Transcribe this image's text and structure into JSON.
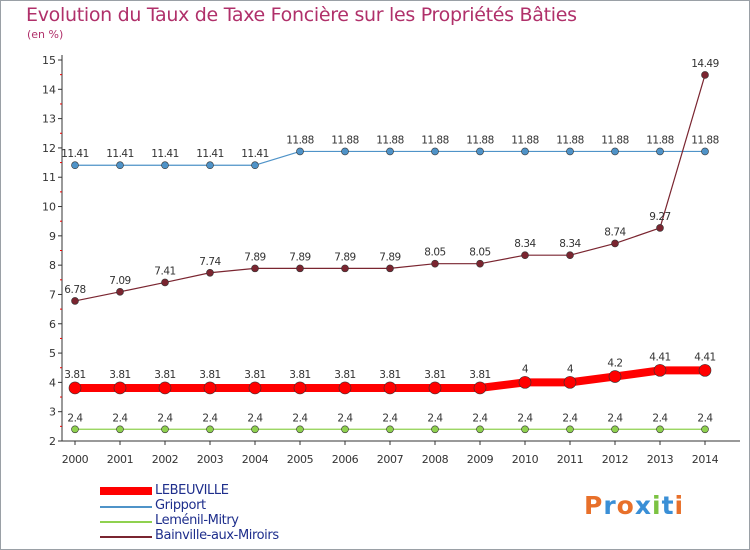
{
  "title": "Evolution du Taux de Taxe Foncière sur les Propriétés Bâties",
  "unit_label": "(en %)",
  "logo_text": "Proxiti",
  "chart_data": {
    "type": "line",
    "title": "Evolution du Taux de Taxe Foncière sur les Propriétés Bâties",
    "ylabel": "(en %)",
    "xlabel": "",
    "x": [
      "2000",
      "2001",
      "2002",
      "2003",
      "2004",
      "2005",
      "2006",
      "2007",
      "2008",
      "2009",
      "2010",
      "2011",
      "2012",
      "2013",
      "2014"
    ],
    "yticks": [
      "2",
      "3",
      "4",
      "5",
      "6",
      "7",
      "8",
      "9",
      "10",
      "11",
      "12",
      "13",
      "14",
      "15"
    ],
    "ylim": [
      2,
      15
    ],
    "grid": false,
    "legend_position": "bottom-left",
    "series": [
      {
        "name": "LEBEUVILLE",
        "color": "#ff0000",
        "values": [
          3.81,
          3.81,
          3.81,
          3.81,
          3.81,
          3.81,
          3.81,
          3.81,
          3.81,
          3.81,
          4,
          4,
          4.2,
          4.41,
          4.41
        ],
        "labels": [
          "3.81",
          "3.81",
          "3.81",
          "3.81",
          "3.81",
          "3.81",
          "3.81",
          "3.81",
          "3.81",
          "3.81",
          "4",
          "4",
          "4.2",
          "4.41",
          "4.41"
        ]
      },
      {
        "name": "Gripport",
        "color": "#4f93c8",
        "values": [
          11.41,
          11.41,
          11.41,
          11.41,
          11.41,
          11.88,
          11.88,
          11.88,
          11.88,
          11.88,
          11.88,
          11.88,
          11.88,
          11.88,
          11.88
        ],
        "labels": [
          "11.41",
          "11.41",
          "11.41",
          "11.41",
          "11.41",
          "11.88",
          "11.88",
          "11.88",
          "11.88",
          "11.88",
          "11.88",
          "11.88",
          "11.88",
          "11.88",
          "11.88"
        ]
      },
      {
        "name": "Leménil-Mitry",
        "color": "#8fd14f",
        "values": [
          2.4,
          2.4,
          2.4,
          2.4,
          2.4,
          2.4,
          2.4,
          2.4,
          2.4,
          2.4,
          2.4,
          2.4,
          2.4,
          2.4,
          2.4
        ],
        "labels": [
          "2.4",
          "2.4",
          "2.4",
          "2.4",
          "2.4",
          "2.4",
          "2.4",
          "2.4",
          "2.4",
          "2.4",
          "2.4",
          "2.4",
          "2.4",
          "2.4",
          "2.4"
        ]
      },
      {
        "name": "Bainville-aux-Miroirs",
        "color": "#7a2530",
        "values": [
          6.78,
          7.09,
          7.41,
          7.74,
          7.89,
          7.89,
          7.89,
          7.89,
          8.05,
          8.05,
          8.34,
          8.34,
          8.74,
          9.27,
          14.49
        ],
        "labels": [
          "6.78",
          "7.09",
          "7.41",
          "7.74",
          "7.89",
          "7.89",
          "7.89",
          "7.89",
          "8.05",
          "8.05",
          "8.34",
          "8.34",
          "8.74",
          "9.27",
          "14.49"
        ]
      }
    ]
  }
}
